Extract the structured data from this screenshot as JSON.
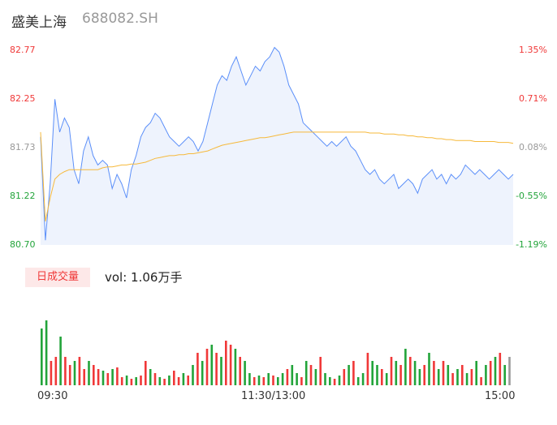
{
  "header": {
    "name": "盛美上海",
    "code": "688082.SH"
  },
  "volume_panel": {
    "tab_label": "日成交量",
    "vol_text": "vol: 1.06万手"
  },
  "colors": {
    "price_line": "#5b8ff9",
    "avg_line": "#f6b93b",
    "up": "#f03838",
    "down": "#22a43a",
    "neutral": "#999999",
    "area": "#eef3fd"
  },
  "chart_data": [
    {
      "type": "line",
      "title": "",
      "xlabel": "",
      "ylabel": "",
      "x_ticks": [
        "09:30",
        "11:30/13:00",
        "15:00"
      ],
      "y_ticks": [
        "82.77",
        "82.25",
        "81.73",
        "81.22",
        "80.70"
      ],
      "y_ticks_right": [
        "1.35%",
        "0.71%",
        "0.08%",
        "-0.55%",
        "-1.19%"
      ],
      "ylim": [
        80.7,
        82.77
      ],
      "reference_price": 81.66,
      "series": [
        {
          "kind": "price",
          "values": [
            81.85,
            80.75,
            81.35,
            82.25,
            81.9,
            82.05,
            81.95,
            81.5,
            81.35,
            81.7,
            81.85,
            81.65,
            81.55,
            81.6,
            81.55,
            81.3,
            81.45,
            81.35,
            81.2,
            81.5,
            81.65,
            81.85,
            81.95,
            82.0,
            82.1,
            82.05,
            81.95,
            81.85,
            81.8,
            81.75,
            81.8,
            81.85,
            81.8,
            81.7,
            81.8,
            82.0,
            82.2,
            82.4,
            82.5,
            82.45,
            82.6,
            82.7,
            82.55,
            82.4,
            82.5,
            82.6,
            82.55,
            82.65,
            82.7,
            82.8,
            82.75,
            82.6,
            82.4,
            82.3,
            82.2,
            82.0,
            81.95,
            81.9,
            81.85,
            81.8,
            81.75,
            81.8,
            81.75,
            81.8,
            81.85,
            81.75,
            81.7,
            81.6,
            81.5,
            81.45,
            81.5,
            81.4,
            81.35,
            81.4,
            81.45,
            81.3,
            81.35,
            81.4,
            81.35,
            81.25,
            81.4,
            81.45,
            81.5,
            81.4,
            81.45,
            81.35,
            81.45,
            81.4,
            81.45,
            81.55,
            81.5,
            81.45,
            81.5,
            81.45,
            81.4,
            81.45,
            81.5,
            81.45,
            81.4,
            81.45
          ]
        },
        {
          "kind": "average",
          "values": [
            81.9,
            80.95,
            81.2,
            81.4,
            81.45,
            81.48,
            81.5,
            81.5,
            81.5,
            81.5,
            81.5,
            81.5,
            81.5,
            81.52,
            81.53,
            81.53,
            81.54,
            81.55,
            81.55,
            81.56,
            81.56,
            81.57,
            81.58,
            81.6,
            81.62,
            81.63,
            81.64,
            81.65,
            81.65,
            81.66,
            81.66,
            81.67,
            81.67,
            81.68,
            81.69,
            81.7,
            81.72,
            81.74,
            81.76,
            81.77,
            81.78,
            81.79,
            81.8,
            81.81,
            81.82,
            81.83,
            81.84,
            81.84,
            81.85,
            81.86,
            81.87,
            81.88,
            81.89,
            81.9,
            81.9,
            81.9,
            81.9,
            81.9,
            81.9,
            81.9,
            81.9,
            81.9,
            81.9,
            81.9,
            81.9,
            81.9,
            81.9,
            81.9,
            81.9,
            81.89,
            81.89,
            81.89,
            81.88,
            81.88,
            81.88,
            81.87,
            81.87,
            81.86,
            81.86,
            81.85,
            81.85,
            81.84,
            81.84,
            81.83,
            81.83,
            81.82,
            81.82,
            81.81,
            81.81,
            81.81,
            81.81,
            81.8,
            81.8,
            81.8,
            81.8,
            81.8,
            81.79,
            81.79,
            81.79,
            81.78
          ]
        }
      ]
    },
    {
      "type": "bar",
      "title": "日成交量",
      "xlabel": "",
      "ylabel": "",
      "ylim": [
        0,
        100
      ],
      "volumes": [
        70,
        80,
        30,
        35,
        60,
        35,
        25,
        30,
        35,
        20,
        30,
        25,
        20,
        18,
        15,
        20,
        22,
        10,
        12,
        8,
        10,
        12,
        30,
        20,
        15,
        10,
        8,
        12,
        18,
        10,
        15,
        12,
        25,
        40,
        30,
        45,
        50,
        40,
        35,
        55,
        50,
        45,
        35,
        30,
        15,
        10,
        12,
        10,
        15,
        12,
        10,
        15,
        20,
        25,
        15,
        10,
        30,
        25,
        20,
        35,
        15,
        10,
        8,
        12,
        20,
        25,
        30,
        10,
        15,
        40,
        30,
        25,
        20,
        15,
        35,
        30,
        25,
        45,
        35,
        30,
        20,
        25,
        40,
        30,
        20,
        30,
        25,
        15,
        20,
        25,
        15,
        20,
        30,
        10,
        25,
        30,
        35,
        40,
        25,
        35
      ],
      "directions": [
        "d",
        "d",
        "u",
        "u",
        "d",
        "u",
        "u",
        "d",
        "u",
        "u",
        "d",
        "u",
        "u",
        "d",
        "u",
        "d",
        "u",
        "u",
        "d",
        "u",
        "d",
        "u",
        "u",
        "d",
        "u",
        "d",
        "u",
        "d",
        "u",
        "u",
        "d",
        "u",
        "d",
        "u",
        "d",
        "u",
        "d",
        "u",
        "d",
        "u",
        "u",
        "d",
        "u",
        "d",
        "d",
        "u",
        "d",
        "u",
        "d",
        "u",
        "d",
        "d",
        "u",
        "d",
        "d",
        "u",
        "d",
        "u",
        "d",
        "u",
        "d",
        "d",
        "u",
        "d",
        "u",
        "d",
        "u",
        "d",
        "d",
        "u",
        "d",
        "d",
        "u",
        "d",
        "u",
        "d",
        "u",
        "d",
        "u",
        "d",
        "d",
        "u",
        "d",
        "u",
        "d",
        "u",
        "d",
        "u",
        "d",
        "u",
        "d",
        "u",
        "d",
        "u",
        "d",
        "u",
        "d",
        "u",
        "d",
        "n"
      ]
    }
  ]
}
